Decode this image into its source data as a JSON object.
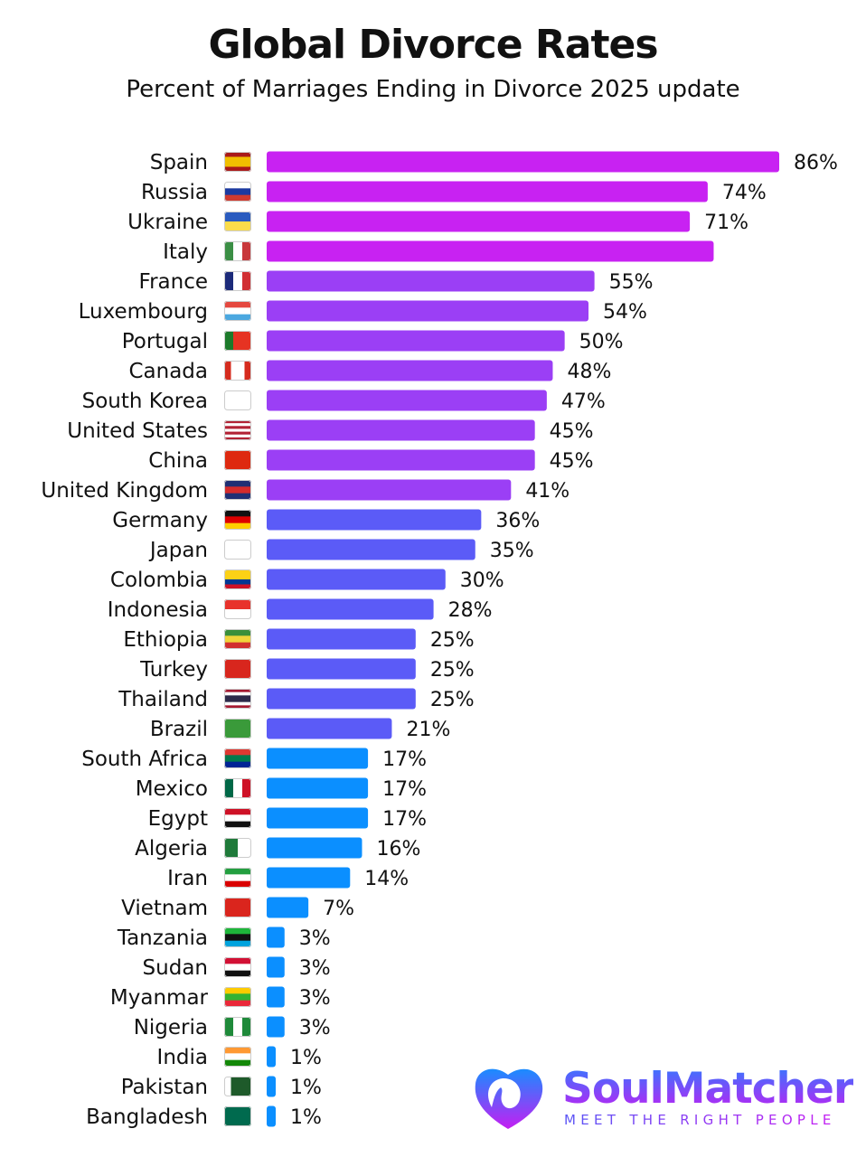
{
  "title": "Global Divorce Rates",
  "subtitle": "Percent of Marriages Ending in Divorce 2025 update",
  "brand": {
    "name": "SoulMatcher",
    "tagline": "MEET THE RIGHT PEOPLE",
    "icon": "heart-logo-icon"
  },
  "chart_data": {
    "type": "bar",
    "orientation": "horizontal",
    "title": "Global Divorce Rates",
    "subtitle": "Percent of Marriages Ending in Divorce 2025 update",
    "unit": "%",
    "grid": false,
    "categories": [
      "Spain",
      "Russia",
      "Ukraine",
      "Italy",
      "France",
      "Luxembourg",
      "Portugal",
      "Canada",
      "South Korea",
      "United States",
      "China",
      "United Kingdom",
      "Germany",
      "Japan",
      "Colombia",
      "Indonesia",
      "Ethiopia",
      "Turkey",
      "Thailand",
      "Brazil",
      "South Africa",
      "Mexico",
      "Egypt",
      "Algeria",
      "Iran",
      "Vietnam",
      "Tanzania",
      "Sudan",
      "Myanmar",
      "Nigeria",
      "India",
      "Pakistan",
      "Bangladesh"
    ],
    "values": [
      86,
      74,
      71,
      75,
      55,
      54,
      50,
      48,
      47,
      45,
      45,
      41,
      36,
      35,
      30,
      28,
      25,
      25,
      25,
      21,
      17,
      17,
      17,
      16,
      14,
      7,
      3,
      3,
      3,
      3,
      1,
      1,
      1
    ],
    "labels": [
      "86%",
      "74%",
      "71%",
      "",
      "55%",
      "54%",
      "50%",
      "48%",
      "47%",
      "45%",
      "45%",
      "41%",
      "36%",
      "35%",
      "30%",
      "28%",
      "25%",
      "25%",
      "25%",
      "21%",
      "17%",
      "17%",
      "17%",
      "16%",
      "14%",
      "7%",
      "3%",
      "3%",
      "3%",
      "3%",
      "1%",
      "1%",
      "1%"
    ],
    "bar_colors": [
      "#c822f2",
      "#c822f2",
      "#c822f2",
      "#c822f2",
      "#9b3ff5",
      "#9b3ff5",
      "#9b3ff5",
      "#9b3ff5",
      "#9b3ff5",
      "#9b3ff5",
      "#9b3ff5",
      "#9b3ff5",
      "#5b5bf7",
      "#5b5bf7",
      "#5b5bf7",
      "#5b5bf7",
      "#5b5bf7",
      "#5b5bf7",
      "#5b5bf7",
      "#5b5bf7",
      "#0b8fff",
      "#0b8fff",
      "#0b8fff",
      "#0b8fff",
      "#0b8fff",
      "#0b8fff",
      "#0b8fff",
      "#0b8fff",
      "#0b8fff",
      "#0b8fff",
      "#0b8fff",
      "#0b8fff",
      "#0b8fff"
    ],
    "flags": [
      {
        "dir": "h",
        "c": [
          "#aa1a1a",
          "#f1bf00",
          "#f1bf00",
          "#aa1a1a"
        ]
      },
      {
        "dir": "h",
        "c": [
          "#ffffff",
          "#1c3aa0",
          "#d03a2f"
        ]
      },
      {
        "dir": "h",
        "c": [
          "#2a5bbf",
          "#fbdc4a"
        ]
      },
      {
        "dir": "v",
        "c": [
          "#3b8f45",
          "#ffffff",
          "#c8383b"
        ]
      },
      {
        "dir": "v",
        "c": [
          "#1c2a7a",
          "#ffffff",
          "#d12f33"
        ]
      },
      {
        "dir": "h",
        "c": [
          "#e5483f",
          "#ffffff",
          "#4ba8e0"
        ]
      },
      {
        "dir": "v",
        "c": [
          "#1c7a2a",
          "#e63322",
          "#e63322"
        ]
      },
      {
        "dir": "v",
        "c": [
          "#d52b1e",
          "#ffffff",
          "#ffffff",
          "#d52b1e"
        ]
      },
      {
        "dir": "h",
        "c": [
          "#ffffff"
        ]
      },
      {
        "dir": "h",
        "c": [
          "#b22234",
          "#ffffff",
          "#b22234",
          "#ffffff",
          "#b22234",
          "#ffffff",
          "#b22234"
        ]
      },
      {
        "dir": "h",
        "c": [
          "#de2910"
        ]
      },
      {
        "dir": "h",
        "c": [
          "#1f2f74",
          "#d42b2b",
          "#1f2f74"
        ]
      },
      {
        "dir": "h",
        "c": [
          "#111111",
          "#dd0000",
          "#ffce00"
        ]
      },
      {
        "dir": "h",
        "c": [
          "#ffffff"
        ]
      },
      {
        "dir": "h",
        "c": [
          "#fcd116",
          "#fcd116",
          "#003893",
          "#ce1126"
        ]
      },
      {
        "dir": "h",
        "c": [
          "#e8322b",
          "#ffffff"
        ]
      },
      {
        "dir": "h",
        "c": [
          "#3a8f3a",
          "#f0d43a",
          "#d12f2f"
        ]
      },
      {
        "dir": "h",
        "c": [
          "#d8261d"
        ]
      },
      {
        "dir": "h",
        "c": [
          "#a51931",
          "#ffffff",
          "#2d2a4a",
          "#2d2a4a",
          "#ffffff",
          "#a51931"
        ]
      },
      {
        "dir": "h",
        "c": [
          "#3a9a3a"
        ]
      },
      {
        "dir": "h",
        "c": [
          "#de3831",
          "#007a4d",
          "#002395"
        ]
      },
      {
        "dir": "v",
        "c": [
          "#006847",
          "#ffffff",
          "#ce1126"
        ]
      },
      {
        "dir": "h",
        "c": [
          "#ce1126",
          "#ffffff",
          "#111111"
        ]
      },
      {
        "dir": "v",
        "c": [
          "#1f7a3a",
          "#ffffff"
        ]
      },
      {
        "dir": "h",
        "c": [
          "#239f40",
          "#ffffff",
          "#da0000"
        ]
      },
      {
        "dir": "h",
        "c": [
          "#da251d"
        ]
      },
      {
        "dir": "h",
        "c": [
          "#1eb53a",
          "#111111",
          "#00a3dd"
        ]
      },
      {
        "dir": "h",
        "c": [
          "#d21034",
          "#ffffff",
          "#111111"
        ]
      },
      {
        "dir": "h",
        "c": [
          "#fecb00",
          "#34b233",
          "#ea2839"
        ]
      },
      {
        "dir": "v",
        "c": [
          "#1f8a3a",
          "#ffffff",
          "#1f8a3a"
        ]
      },
      {
        "dir": "h",
        "c": [
          "#ff9933",
          "#ffffff",
          "#138808"
        ]
      },
      {
        "dir": "v",
        "c": [
          "#ffffff",
          "#1e5a2a",
          "#1e5a2a",
          "#1e5a2a"
        ]
      },
      {
        "dir": "h",
        "c": [
          "#006a4e"
        ]
      }
    ]
  }
}
